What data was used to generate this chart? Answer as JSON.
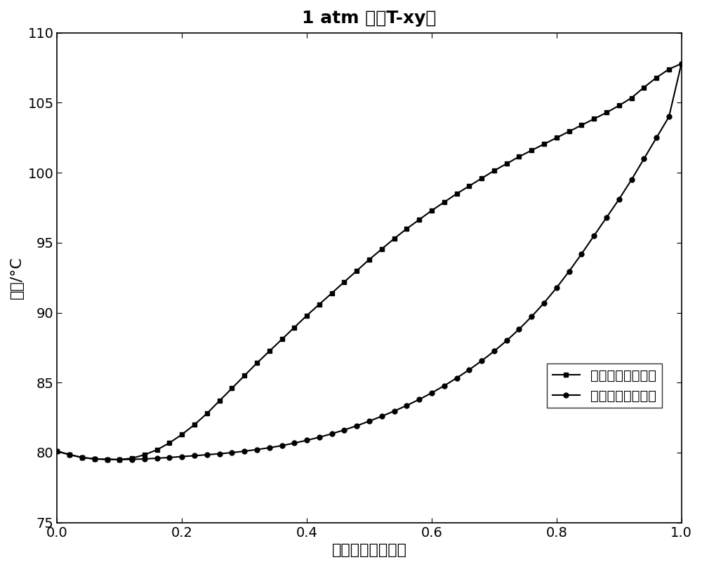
{
  "title": "1 atm 下的T-xy图",
  "xlabel": "异丁醇的摩尔分数",
  "ylabel": "温度/°C",
  "xlim": [
    0.0,
    1.0
  ],
  "ylim": [
    75,
    110
  ],
  "yticks": [
    75,
    80,
    85,
    90,
    95,
    100,
    105,
    110
  ],
  "xticks": [
    0.0,
    0.2,
    0.4,
    0.6,
    0.8,
    1.0
  ],
  "legend_vapor": "异丁醇的气相组成",
  "legend_liquid": "异丁醇的液相组成",
  "vapor_x": [
    0.0,
    0.02,
    0.04,
    0.06,
    0.08,
    0.1,
    0.12,
    0.14,
    0.16,
    0.18,
    0.2,
    0.22,
    0.24,
    0.26,
    0.28,
    0.3,
    0.32,
    0.34,
    0.36,
    0.38,
    0.4,
    0.42,
    0.44,
    0.46,
    0.48,
    0.5,
    0.52,
    0.54,
    0.56,
    0.58,
    0.6,
    0.62,
    0.64,
    0.66,
    0.68,
    0.7,
    0.72,
    0.74,
    0.76,
    0.78,
    0.8,
    0.82,
    0.84,
    0.86,
    0.88,
    0.9,
    0.92,
    0.94,
    0.96,
    0.98,
    1.0
  ],
  "vapor_y": [
    80.1,
    79.85,
    79.65,
    79.55,
    79.52,
    79.5,
    79.6,
    79.85,
    80.2,
    80.7,
    81.3,
    82.0,
    82.8,
    83.7,
    84.6,
    85.5,
    86.4,
    87.25,
    88.1,
    88.95,
    89.8,
    90.6,
    91.4,
    92.2,
    93.0,
    93.8,
    94.55,
    95.3,
    96.0,
    96.65,
    97.3,
    97.9,
    98.5,
    99.05,
    99.6,
    100.15,
    100.65,
    101.15,
    101.6,
    102.05,
    102.5,
    102.95,
    103.4,
    103.85,
    104.3,
    104.8,
    105.35,
    106.1,
    106.8,
    107.4,
    107.8
  ],
  "liquid_x": [
    0.0,
    0.02,
    0.04,
    0.06,
    0.08,
    0.1,
    0.12,
    0.14,
    0.16,
    0.18,
    0.2,
    0.22,
    0.24,
    0.26,
    0.28,
    0.3,
    0.32,
    0.34,
    0.36,
    0.38,
    0.4,
    0.42,
    0.44,
    0.46,
    0.48,
    0.5,
    0.52,
    0.54,
    0.56,
    0.58,
    0.6,
    0.62,
    0.64,
    0.66,
    0.68,
    0.7,
    0.72,
    0.74,
    0.76,
    0.78,
    0.8,
    0.82,
    0.84,
    0.86,
    0.88,
    0.9,
    0.92,
    0.94,
    0.96,
    0.98,
    1.0
  ],
  "liquid_y": [
    80.1,
    79.85,
    79.65,
    79.55,
    79.52,
    79.5,
    79.52,
    79.55,
    79.6,
    79.65,
    79.72,
    79.78,
    79.85,
    79.92,
    80.0,
    80.1,
    80.22,
    80.35,
    80.5,
    80.68,
    80.88,
    81.1,
    81.35,
    81.62,
    81.92,
    82.25,
    82.6,
    82.97,
    83.37,
    83.8,
    84.27,
    84.78,
    85.33,
    85.92,
    86.56,
    87.25,
    88.0,
    88.82,
    89.72,
    90.7,
    91.78,
    92.95,
    94.2,
    95.5,
    96.8,
    98.1,
    99.5,
    101.0,
    102.5,
    104.0,
    107.8
  ],
  "line_color": "#000000",
  "marker_vapor": "s",
  "marker_liquid": "o",
  "markersize": 5,
  "linewidth": 1.5,
  "background_color": "#ffffff",
  "title_fontsize": 18,
  "label_fontsize": 16,
  "tick_fontsize": 14,
  "legend_fontsize": 14
}
